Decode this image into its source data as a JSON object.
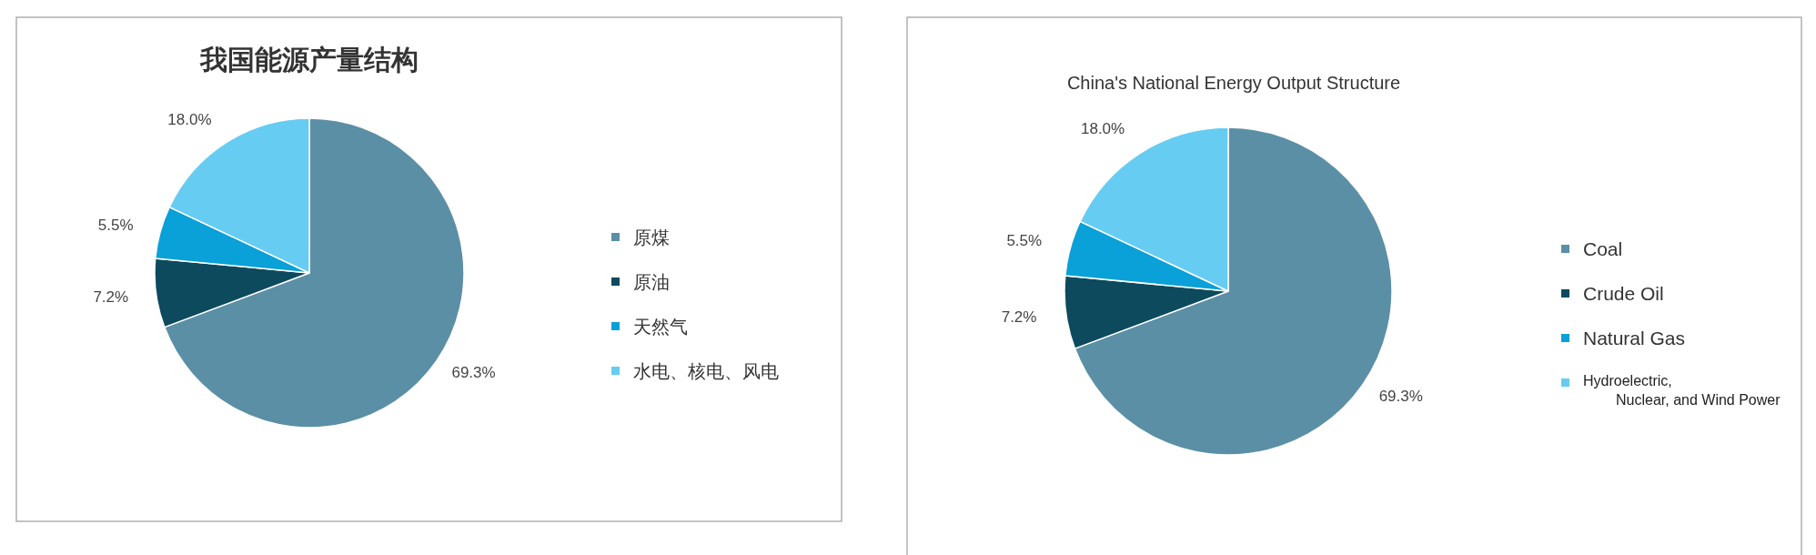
{
  "chart_data": [
    {
      "type": "pie",
      "title": "我国能源产量结构",
      "categories": [
        "原煤",
        "原油",
        "天然气",
        "水电、核电、风电"
      ],
      "values": [
        69.3,
        7.2,
        5.5,
        18.0
      ],
      "value_labels": [
        "69.3%",
        "7.2%",
        "5.5%",
        "18.0%"
      ],
      "colors": [
        "#5b8fa6",
        "#0d4a5e",
        "#0aa0d8",
        "#66ccf2"
      ],
      "legend": "right"
    },
    {
      "type": "pie",
      "title": "China's National Energy Output Structure",
      "categories": [
        "Coal",
        "Crude Oil",
        "Natural Gas",
        "Hydroelectric, Nuclear, and Wind Power"
      ],
      "values": [
        69.3,
        7.2,
        5.5,
        18.0
      ],
      "value_labels": [
        "69.3%",
        "7.2%",
        "5.5%",
        "18.0%"
      ],
      "colors": [
        "#5b8fa6",
        "#0d4a5e",
        "#0aa0d8",
        "#66ccf2"
      ],
      "legend": "right"
    }
  ]
}
